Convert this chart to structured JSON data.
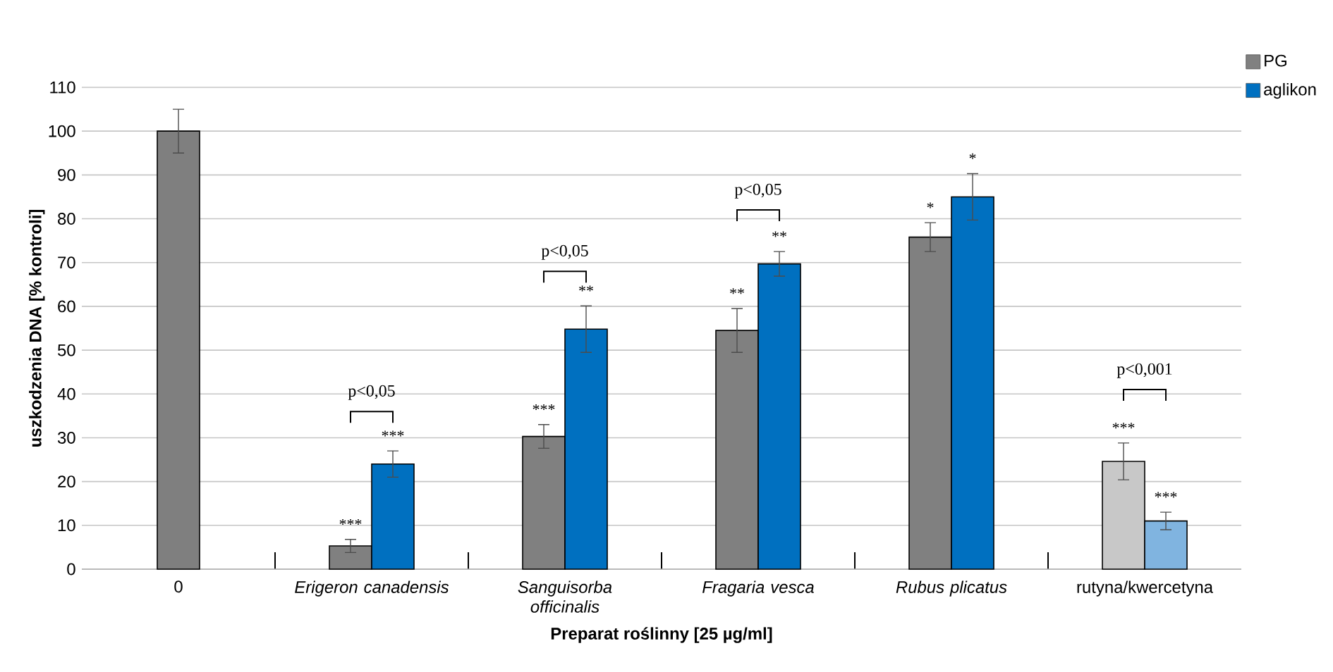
{
  "chart_data": {
    "type": "bar",
    "xlabel": "Preparat roślinny [25 µg/ml]",
    "ylabel": "uszkodzenia DNA [% kontroli]",
    "categories": [
      "0",
      "*Erigeron canadensis*",
      "*Sanguisorba officinalis*",
      "*Fragaria vesca*",
      "*Rubus plicatus*",
      "rutyna/kwercetyna"
    ],
    "series": [
      {
        "color": "#7f7f7f",
        "values": [
          100,
          null,
          null,
          null,
          null,
          null
        ],
        "errors": [
          5,
          null,
          null,
          null,
          null,
          null
        ]
      },
      {
        "name": "PG",
        "color": "#808080",
        "colors": [
          "#808080",
          "#808080",
          "#808080",
          "#808080",
          "#808080",
          "#c8c8c8"
        ],
        "values": [
          null,
          5.3,
          30.3,
          54.5,
          75.8,
          24.6
        ],
        "errors": [
          null,
          1.5,
          2.7,
          5,
          3.3,
          4.2
        ],
        "value_labels": [
          null,
          "***",
          "***",
          "**",
          "*",
          "***"
        ]
      },
      {
        "name": "aglikon",
        "color": "#0070c0",
        "colors": [
          "#0070c0",
          "#0070c0",
          "#0070c0",
          "#0070c0",
          "#0070c0",
          "#80b4e0"
        ],
        "values": [
          null,
          24,
          54.8,
          69.7,
          85,
          11
        ],
        "errors": [
          null,
          3,
          5.3,
          2.8,
          5.3,
          2
        ],
        "value_labels": [
          null,
          "***",
          "**",
          "**",
          "*",
          "***"
        ]
      }
    ],
    "annotations": [
      "p<0,05",
      "p<0,05",
      "p<0,05",
      "p<0,001"
    ],
    "ylim": [
      0,
      110
    ],
    "yticks": [
      0,
      10,
      20,
      30,
      40,
      50,
      60,
      70,
      80,
      90,
      100,
      110
    ],
    "grid": "y",
    "legend": "top right"
  }
}
